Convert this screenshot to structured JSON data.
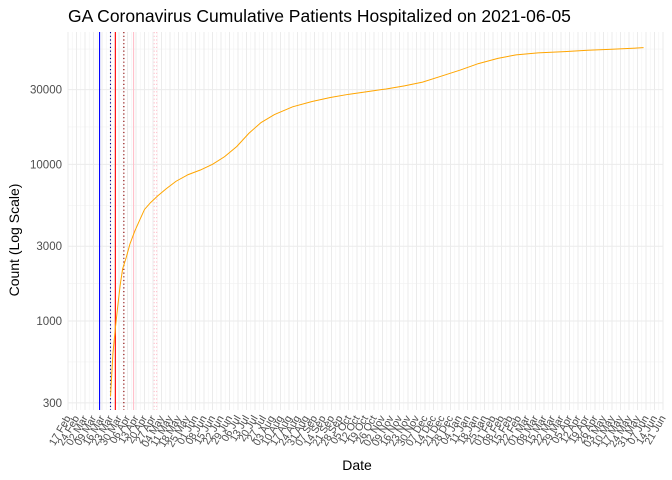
{
  "chart_data": {
    "type": "line",
    "title": "GA Coronavirus Cumulative Patients Hospitalized on 2021-06-05",
    "xlabel": "Date",
    "ylabel": "Count (Log Scale)",
    "y_scale": "log",
    "ylim": [
      270,
      70000
    ],
    "yticks": [
      300,
      1000,
      3000,
      10000,
      30000
    ],
    "ytick_labels": [
      "300",
      "1000",
      "3000",
      "10000",
      "30000"
    ],
    "xlim": [
      "2020-02-17",
      "2021-06-21"
    ],
    "xtick_labels": [
      "17 Feb",
      "24 Feb",
      "02 Mar",
      "09 Mar",
      "16 Mar",
      "23 Mar",
      "30 Mar",
      "06 Apr",
      "13 Apr",
      "20 Apr",
      "27 Apr",
      "04 May",
      "11 May",
      "18 May",
      "25 May",
      "01 Jun",
      "08 Jun",
      "15 Jun",
      "22 Jun",
      "29 Jun",
      "06 Jul",
      "13 Jul",
      "20 Jul",
      "27 Jul",
      "03 Aug",
      "10 Aug",
      "17 Aug",
      "24 Aug",
      "31 Aug",
      "07 Sep",
      "14 Sep",
      "21 Sep",
      "28 Sep",
      "05 Oct",
      "12 Oct",
      "19 Oct",
      "26 Oct",
      "02 Nov",
      "09 Nov",
      "16 Nov",
      "23 Nov",
      "30 Nov",
      "07 Dec",
      "14 Dec",
      "21 Dec",
      "28 Dec",
      "04 Jan",
      "11 Jan",
      "18 Jan",
      "25 Jan",
      "01 Feb",
      "08 Feb",
      "15 Feb",
      "22 Feb",
      "01 Mar",
      "08 Mar",
      "15 Mar",
      "22 Mar",
      "29 Mar",
      "05 Apr",
      "12 Apr",
      "19 Apr",
      "26 Apr",
      "03 May",
      "10 May",
      "17 May",
      "24 May",
      "31 May",
      "07 Jun",
      "14 Jun",
      "21 Jun"
    ],
    "grid": true,
    "series": [
      {
        "color": "#FFA500",
        "points": [
          [
            "2020-03-23",
            330
          ],
          [
            "2020-03-24",
            450
          ],
          [
            "2020-03-25",
            620
          ],
          [
            "2020-03-27",
            900
          ],
          [
            "2020-03-29",
            1250
          ],
          [
            "2020-03-31",
            1700
          ],
          [
            "2020-04-02",
            2150
          ],
          [
            "2020-04-05",
            2550
          ],
          [
            "2020-04-08",
            3100
          ],
          [
            "2020-04-12",
            3750
          ],
          [
            "2020-04-16",
            4400
          ],
          [
            "2020-04-20",
            5150
          ],
          [
            "2020-04-25",
            5700
          ],
          [
            "2020-05-01",
            6300
          ],
          [
            "2020-05-08",
            7000
          ],
          [
            "2020-05-16",
            7800
          ],
          [
            "2020-05-26",
            8600
          ],
          [
            "2020-06-05",
            9200
          ],
          [
            "2020-06-15",
            10000
          ],
          [
            "2020-06-25",
            11200
          ],
          [
            "2020-07-05",
            13000
          ],
          [
            "2020-07-15",
            15800
          ],
          [
            "2020-07-25",
            18500
          ],
          [
            "2020-08-05",
            20800
          ],
          [
            "2020-08-20",
            23300
          ],
          [
            "2020-09-05",
            25200
          ],
          [
            "2020-09-20",
            26700
          ],
          [
            "2020-10-05",
            28000
          ],
          [
            "2020-10-20",
            29100
          ],
          [
            "2020-11-05",
            30300
          ],
          [
            "2020-11-20",
            31700
          ],
          [
            "2020-12-05",
            33500
          ],
          [
            "2020-12-20",
            36500
          ],
          [
            "2021-01-05",
            40000
          ],
          [
            "2021-01-20",
            44000
          ],
          [
            "2021-02-05",
            47500
          ],
          [
            "2021-02-20",
            50000
          ],
          [
            "2021-03-10",
            51500
          ],
          [
            "2021-04-01",
            52500
          ],
          [
            "2021-04-20",
            53500
          ],
          [
            "2021-05-10",
            54300
          ],
          [
            "2021-05-25",
            55000
          ],
          [
            "2021-06-05",
            55600
          ]
        ]
      }
    ],
    "reference_lines": [
      {
        "date": "2020-03-14",
        "color": "#0000FF",
        "style": "solid"
      },
      {
        "date": "2020-03-23",
        "color": "#00008B",
        "style": "dotted"
      },
      {
        "date": "2020-03-27",
        "color": "#FF0000",
        "style": "solid"
      },
      {
        "date": "2020-04-03",
        "color": "#8B0000",
        "style": "dotted"
      },
      {
        "date": "2020-04-11",
        "color": "#FFC0CB",
        "style": "solid"
      },
      {
        "date": "2020-04-28",
        "color": "#FFC0CB",
        "style": "dotted"
      },
      {
        "date": "2020-04-30",
        "color": "#FFC0CB",
        "style": "dotted"
      }
    ]
  }
}
